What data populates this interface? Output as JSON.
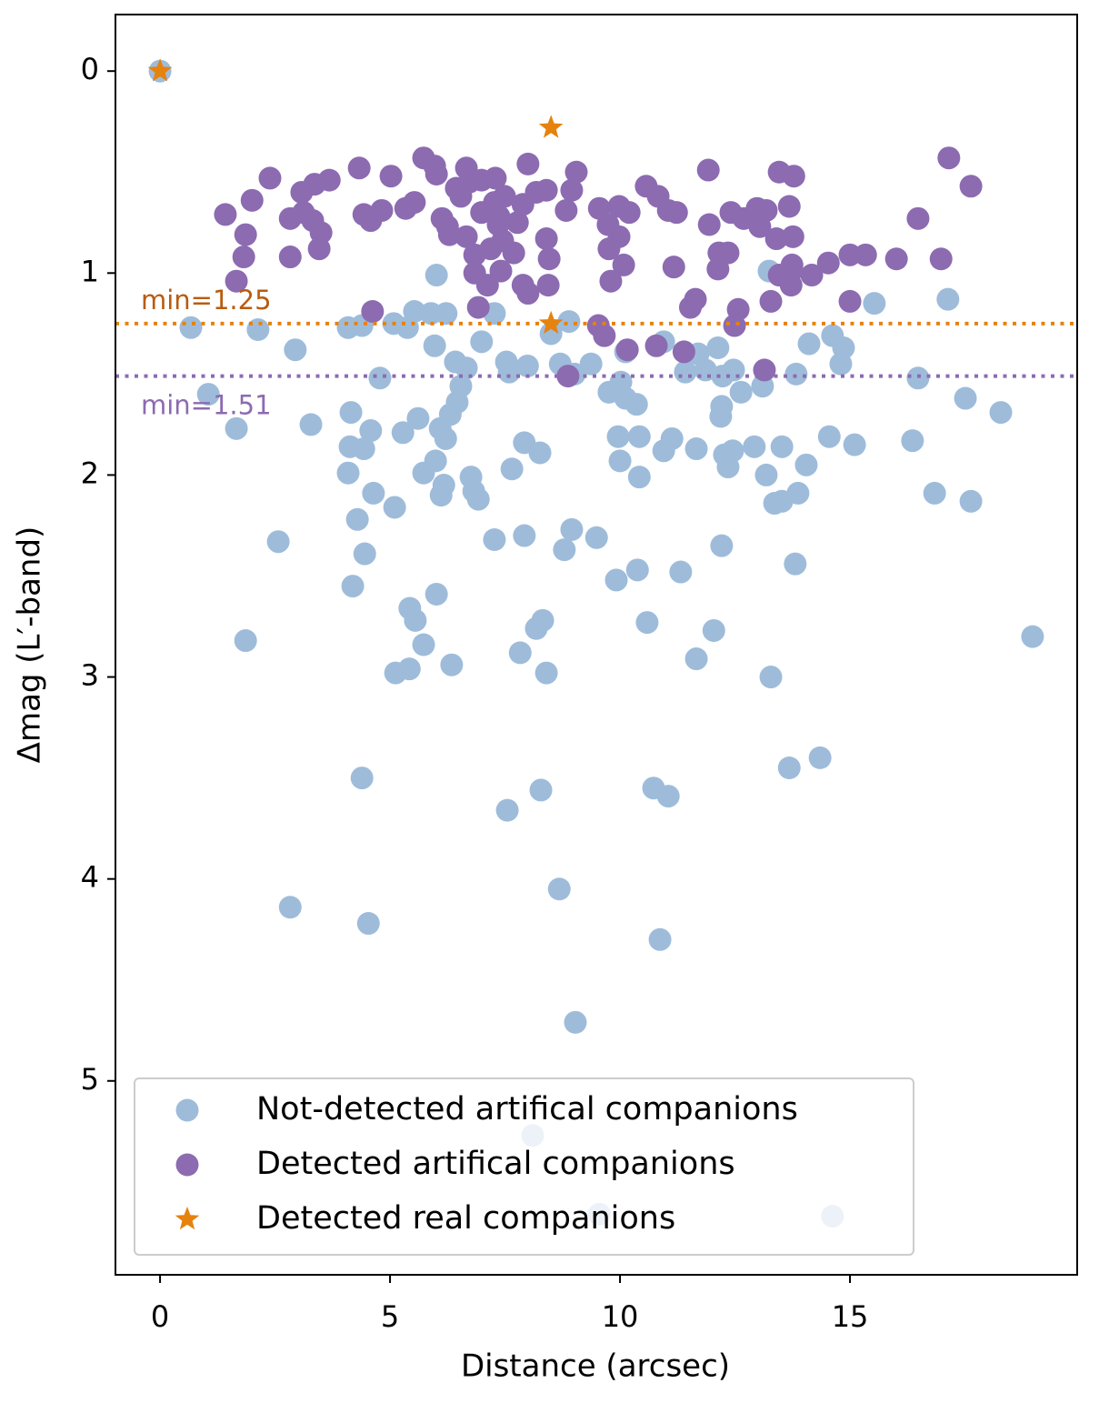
{
  "chart_data": {
    "type": "scatter",
    "xlabel": "Distance (arcsec)",
    "ylabel": "Δmag (L′-band)",
    "xlim": [
      -0.97,
      19.94
    ],
    "ylim": [
      5.96,
      -0.28
    ],
    "xticks": [
      0,
      5,
      10,
      15
    ],
    "yticks": [
      0,
      1,
      2,
      3,
      4,
      5
    ],
    "legend": "lower left",
    "hlines": [
      {
        "value": 1.25,
        "color": "#e6820e",
        "label": "min=1.25",
        "label_color": "#b85c10"
      },
      {
        "value": 1.51,
        "color": "#8c6bb1",
        "label": "min=1.51",
        "label_color": "#8c6bb1"
      }
    ],
    "series": [
      {
        "name": "Not-detected artifical companions",
        "color": "#9ebcda",
        "marker": "circle",
        "x": [
          0.67,
          1.05,
          1.66,
          2.13,
          2.57,
          1.86,
          2.83,
          2.94,
          3.28,
          4.09,
          4.39,
          4.15,
          4.13,
          4.43,
          4.58,
          4.09,
          4.29,
          4.45,
          4.19,
          4.64,
          4.78,
          5.1,
          4.39,
          4.53,
          5.12,
          5.42,
          5.43,
          5.55,
          5.73,
          5.08,
          5.38,
          5.53,
          5.28,
          5.61,
          5.73,
          6.01,
          6.09,
          5.99,
          6.17,
          6.11,
          6.21,
          6.31,
          6.46,
          6.54,
          6.42,
          6.66,
          5.97,
          6.01,
          5.89,
          6.22,
          6.34,
          6.76,
          6.82,
          6.92,
          6.99,
          7.27,
          7.27,
          7.53,
          7.59,
          7.65,
          7.83,
          7.99,
          7.92,
          7.92,
          8.26,
          8.18,
          8.32,
          8.4,
          8.28,
          7.55,
          8.68,
          8.7,
          8.79,
          8.95,
          9.01,
          9.49,
          9.37,
          8.89,
          8.5,
          9.03,
          8.1,
          9.55,
          14.62,
          9.76,
          9.92,
          10.02,
          9.96,
          10.0,
          10.12,
          10.36,
          10.42,
          10.42,
          10.38,
          10.12,
          10.59,
          10.73,
          11.05,
          10.87,
          10.95,
          10.95,
          11.13,
          11.32,
          11.42,
          11.66,
          11.66,
          11.7,
          11.86,
          12.04,
          12.13,
          12.23,
          12.21,
          12.19,
          12.21,
          12.27,
          12.45,
          12.35,
          12.47,
          12.63,
          12.92,
          13.1,
          13.18,
          13.24,
          13.28,
          13.36,
          13.52,
          13.52,
          13.68,
          13.83,
          13.81,
          13.87,
          14.05,
          14.11,
          14.35,
          14.55,
          14.62,
          14.86,
          14.8,
          15.1,
          15.53,
          16.36,
          16.48,
          16.84,
          17.13,
          17.51,
          17.63,
          18.28,
          18.97,
          0
        ],
        "values": [
          1.27,
          1.6,
          1.77,
          1.28,
          2.33,
          2.82,
          4.14,
          1.38,
          1.75,
          1.27,
          1.26,
          1.69,
          1.86,
          1.87,
          1.78,
          1.99,
          2.22,
          2.39,
          2.55,
          2.09,
          1.52,
          2.16,
          3.5,
          4.22,
          2.98,
          2.96,
          2.66,
          2.72,
          2.84,
          1.25,
          1.27,
          1.19,
          1.79,
          1.72,
          1.99,
          2.59,
          1.77,
          1.93,
          2.05,
          2.1,
          1.82,
          1.7,
          1.64,
          1.56,
          1.44,
          1.47,
          1.36,
          1.01,
          1.2,
          1.2,
          2.94,
          2.01,
          2.08,
          2.12,
          1.34,
          1.2,
          2.32,
          1.44,
          1.49,
          1.97,
          2.88,
          1.46,
          1.84,
          2.3,
          1.89,
          2.76,
          2.72,
          2.98,
          3.56,
          3.66,
          4.05,
          1.45,
          2.37,
          2.27,
          1.5,
          2.31,
          1.45,
          1.24,
          1.3,
          4.71,
          5.27,
          5.66,
          5.67,
          1.59,
          2.52,
          1.54,
          1.81,
          1.93,
          1.62,
          1.65,
          1.81,
          2.01,
          2.47,
          1.39,
          2.73,
          3.55,
          3.59,
          4.3,
          1.34,
          1.88,
          1.82,
          2.48,
          1.49,
          1.87,
          2.91,
          1.4,
          1.48,
          2.77,
          1.37,
          1.51,
          1.66,
          1.71,
          2.35,
          1.9,
          1.88,
          1.96,
          1.48,
          1.59,
          1.86,
          1.56,
          2.0,
          0.99,
          3.0,
          2.14,
          2.13,
          1.86,
          3.45,
          1.5,
          2.44,
          2.09,
          1.95,
          1.35,
          3.4,
          1.81,
          1.31,
          1.37,
          1.45,
          1.85,
          1.15,
          1.83,
          1.52,
          2.09,
          1.13,
          1.62,
          2.13,
          1.69,
          2.8,
          0
        ]
      },
      {
        "name": "Detected artifical companions",
        "color": "#8c6bb1",
        "marker": "circle",
        "x": [
          1.42,
          1.66,
          1.86,
          1.82,
          2.0,
          2.39,
          2.83,
          2.83,
          3.08,
          3.12,
          3.32,
          3.36,
          3.46,
          3.5,
          3.68,
          4.33,
          4.43,
          4.58,
          4.82,
          4.62,
          5.02,
          5.34,
          5.53,
          5.73,
          5.97,
          6.01,
          6.13,
          6.29,
          6.25,
          6.44,
          6.54,
          6.66,
          6.72,
          6.66,
          6.84,
          6.84,
          6.99,
          6.99,
          6.92,
          7.12,
          7.19,
          7.29,
          7.27,
          7.35,
          7.41,
          7.45,
          7.49,
          7.37,
          7.69,
          7.77,
          7.89,
          8.0,
          7.89,
          8.0,
          8.18,
          8.4,
          8.4,
          8.46,
          8.44,
          8.95,
          9.05,
          8.83,
          8.87,
          9.53,
          9.66,
          9.55,
          9.74,
          9.76,
          9.8,
          9.98,
          9.98,
          10.08,
          10.2,
          10.16,
          10.57,
          10.83,
          10.79,
          11.05,
          11.23,
          11.17,
          11.39,
          11.53,
          11.64,
          11.92,
          11.94,
          12.13,
          12.15,
          12.35,
          12.41,
          12.57,
          12.49,
          12.69,
          12.98,
          13.04,
          13.18,
          13.14,
          13.28,
          13.4,
          13.46,
          13.46,
          13.68,
          13.76,
          13.78,
          13.7,
          13.72,
          13.74,
          14.17,
          14.53,
          15.0,
          15.34,
          15.0,
          16.01,
          16.48,
          16.98,
          17.15,
          17.63
        ],
        "values": [
          0.71,
          1.04,
          0.81,
          0.92,
          0.64,
          0.53,
          0.92,
          0.73,
          0.6,
          0.7,
          0.74,
          0.56,
          0.88,
          0.8,
          0.54,
          0.48,
          0.71,
          0.74,
          0.69,
          1.19,
          0.52,
          0.68,
          0.65,
          0.43,
          0.47,
          0.51,
          0.73,
          0.81,
          0.77,
          0.58,
          0.62,
          0.48,
          0.55,
          0.82,
          0.91,
          1.0,
          0.54,
          0.7,
          1.17,
          1.06,
          0.88,
          0.53,
          0.65,
          0.76,
          0.99,
          0.84,
          0.62,
          0.72,
          0.9,
          0.75,
          0.66,
          0.46,
          1.06,
          1.1,
          0.6,
          0.59,
          0.83,
          0.93,
          1.06,
          0.59,
          0.5,
          0.69,
          1.51,
          1.26,
          1.31,
          0.68,
          0.76,
          0.88,
          1.04,
          0.67,
          0.82,
          0.96,
          0.7,
          1.38,
          0.57,
          0.62,
          1.36,
          0.69,
          0.7,
          0.97,
          1.39,
          1.17,
          1.13,
          0.49,
          0.76,
          0.98,
          0.9,
          0.9,
          0.7,
          1.18,
          1.26,
          0.73,
          0.68,
          0.77,
          0.69,
          1.48,
          1.14,
          0.83,
          0.5,
          1.01,
          0.67,
          0.82,
          0.52,
          1.0,
          1.06,
          0.96,
          1.01,
          0.95,
          0.91,
          0.91,
          1.14,
          0.93,
          0.73,
          0.93,
          0.43,
          0.57
        ]
      },
      {
        "name": "Detected real companions",
        "color": "#e6820e",
        "marker": "star",
        "x": [
          0,
          8.5,
          8.5
        ],
        "values": [
          0,
          0.28,
          1.25
        ]
      }
    ]
  }
}
